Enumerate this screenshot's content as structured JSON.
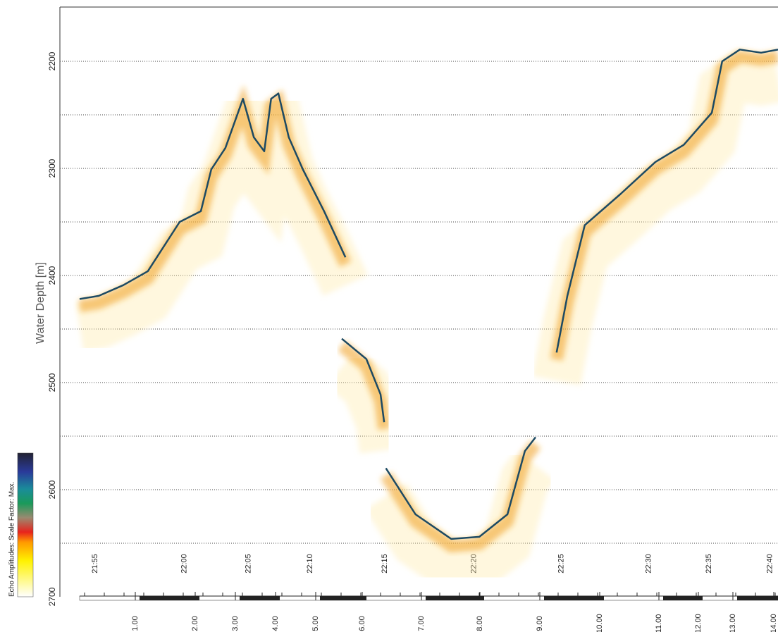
{
  "chart_data": {
    "type": "line",
    "y_label": "Water Depth [m]",
    "colorbar_label": "Echo Amplitudes: Scale Factor: Max.",
    "ylim": [
      2150,
      2700
    ],
    "yticks": [
      2200,
      2300,
      2400,
      2500,
      2600,
      2700
    ],
    "minor_yticks": [
      2250,
      2350,
      2450,
      2550,
      2650
    ],
    "xlim": [
      -0.26,
      14.1
    ],
    "xticks": [
      {
        "value": 1,
        "label": "1.00"
      },
      {
        "value": 2,
        "label": "2.00"
      },
      {
        "value": 3,
        "label": "3.00"
      },
      {
        "value": 4,
        "label": "4.00"
      },
      {
        "value": 5,
        "label": "5.00"
      },
      {
        "value": 6,
        "label": "6.00"
      },
      {
        "value": 7,
        "label": "7.00"
      },
      {
        "value": 8,
        "label": "8.00"
      },
      {
        "value": 9,
        "label": "9.00"
      },
      {
        "value": 10,
        "label": "10.00"
      },
      {
        "value": 11,
        "label": "11.00"
      },
      {
        "value": 12,
        "label": "12.00"
      },
      {
        "value": 13,
        "label": "13.00"
      },
      {
        "value": 14,
        "label": "14.00"
      }
    ],
    "time_ticks": [
      {
        "value": 0.33,
        "label": "21:55"
      },
      {
        "value": 1.82,
        "label": "22:00"
      },
      {
        "value": 3.33,
        "label": "22:05"
      },
      {
        "value": 4.86,
        "label": "22:10"
      },
      {
        "value": 6.38,
        "label": "22:15"
      },
      {
        "value": 7.9,
        "label": "22:20"
      },
      {
        "value": 9.36,
        "label": "22:25"
      },
      {
        "value": 10.83,
        "label": "22:30"
      },
      {
        "value": 12.31,
        "label": "22:35"
      },
      {
        "value": 13.91,
        "label": "22:40"
      }
    ],
    "x": [
      0.07,
      0.39,
      0.8,
      1.21,
      1.74,
      2.14,
      2.4,
      2.75,
      3.19,
      3.46,
      3.72,
      3.89,
      4.07,
      4.33,
      4.68,
      5.18,
      5.64,
      5.6,
      5.56,
      6.07,
      6.31,
      6.37,
      6.38,
      6.4,
      6.9,
      7.51,
      7.99,
      8.46,
      8.75,
      8.93,
      9.1,
      9.28,
      9.46,
      9.75,
      10.35,
      10.94,
      11.63,
      12.39,
      12.69,
      13.17,
      13.69,
      14.1
    ],
    "values": [
      2422,
      2419,
      2409,
      2396,
      2350,
      2340,
      2301,
      2281,
      2235,
      2271,
      2284,
      2235,
      2230,
      2271,
      2301,
      2340,
      2383,
      null,
      2459,
      2478,
      2511,
      2537,
      null,
      2580,
      2623,
      2646,
      2644,
      2623,
      2564,
      2551,
      null,
      2472,
      2419,
      2353,
      2324,
      2294,
      2278,
      2248,
      2200,
      2189,
      2192,
      2189
    ],
    "color": "#1d4a63"
  }
}
